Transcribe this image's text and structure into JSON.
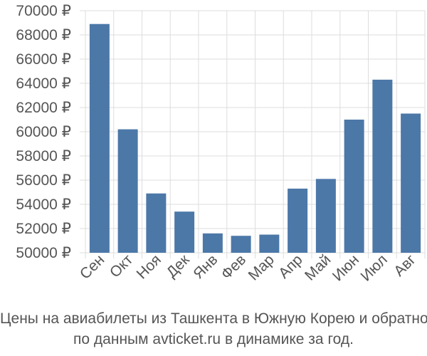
{
  "chart_data": {
    "type": "bar",
    "categories": [
      "Сен",
      "Окт",
      "Ноя",
      "Дек",
      "Янв",
      "Фев",
      "Мар",
      "Апр",
      "Май",
      "Июн",
      "Июл",
      "Авг"
    ],
    "values": [
      68900,
      60200,
      54900,
      53400,
      51600,
      51400,
      51500,
      55300,
      56100,
      61000,
      64300,
      61500
    ],
    "yticks": [
      "50000 ₽",
      "52000 ₽",
      "54000 ₽",
      "56000 ₽",
      "58000 ₽",
      "60000 ₽",
      "62000 ₽",
      "64000 ₽",
      "66000 ₽",
      "68000 ₽",
      "70000 ₽"
    ],
    "ylim": [
      50000,
      70000
    ],
    "ystep": 2000,
    "grid": true,
    "bar_color": "#4c78a8"
  },
  "caption": {
    "line1": "Цены на авиабилеты из Ташкента в Южную Корею и обратно",
    "line2": "по данным avticket.ru в динамике за год."
  }
}
